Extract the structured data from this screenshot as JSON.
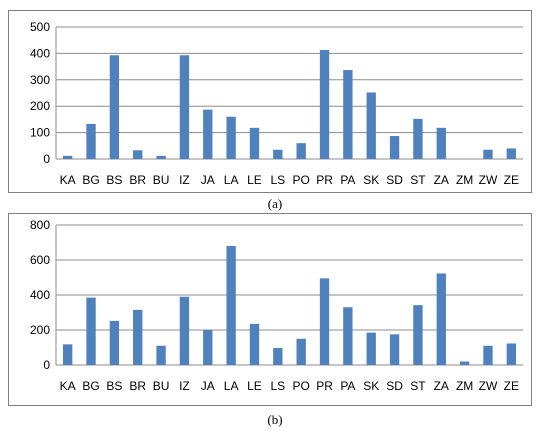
{
  "chart_data": [
    {
      "type": "bar",
      "caption": "(a)",
      "categories": [
        "KA",
        "BG",
        "BS",
        "BR",
        "BU",
        "IZ",
        "JA",
        "LA",
        "LE",
        "LS",
        "PO",
        "PR",
        "PA",
        "SK",
        "SD",
        "ST",
        "ZA",
        "ZM",
        "ZW",
        "ZE"
      ],
      "values": [
        12,
        133,
        393,
        33,
        12,
        393,
        187,
        160,
        118,
        35,
        60,
        413,
        337,
        252,
        87,
        152,
        118,
        0,
        35,
        40
      ],
      "ylim": [
        0,
        500
      ],
      "yticks": [
        0,
        100,
        200,
        300,
        400,
        500
      ],
      "grid": true,
      "legend": "none",
      "colors": {
        "bar": "#4f81bd",
        "grid": "#8c8c8c"
      }
    },
    {
      "type": "bar",
      "caption": "(b)",
      "categories": [
        "KA",
        "BG",
        "BS",
        "BR",
        "BU",
        "IZ",
        "JA",
        "LA",
        "LE",
        "LS",
        "PO",
        "PR",
        "PA",
        "SK",
        "SD",
        "ST",
        "ZA",
        "ZM",
        "ZW",
        "ZE"
      ],
      "values": [
        118,
        385,
        252,
        315,
        110,
        390,
        200,
        680,
        235,
        97,
        150,
        495,
        330,
        185,
        175,
        342,
        523,
        20,
        110,
        123
      ],
      "ylim": [
        0,
        800
      ],
      "yticks": [
        0,
        200,
        400,
        600,
        800
      ],
      "grid": true,
      "legend": "none",
      "colors": {
        "bar": "#4f81bd",
        "grid": "#8c8c8c"
      }
    }
  ]
}
